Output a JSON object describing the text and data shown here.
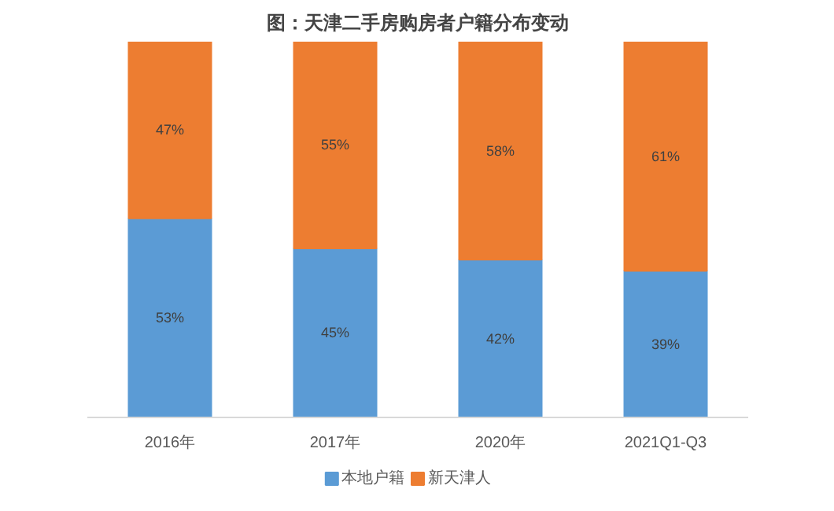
{
  "chart_data": {
    "type": "bar",
    "stacked": true,
    "title": "图：天津二手房购房者户籍分布变动",
    "categories": [
      "2016年",
      "2017年",
      "2020年",
      "2021Q1-Q3"
    ],
    "ylim": [
      0,
      100
    ],
    "legend": "bottom",
    "tick_labels": "x",
    "series": [
      {
        "name": "本地户籍",
        "color": "#5b9bd5",
        "values": [
          53,
          45,
          42,
          39
        ],
        "value_labels": [
          "53%",
          "45%",
          "42%",
          "39%"
        ]
      },
      {
        "name": "新天津人",
        "color": "#ed7d31",
        "values": [
          47,
          55,
          58,
          61
        ],
        "value_labels": [
          "47%",
          "55%",
          "58%",
          "61%"
        ]
      }
    ]
  }
}
